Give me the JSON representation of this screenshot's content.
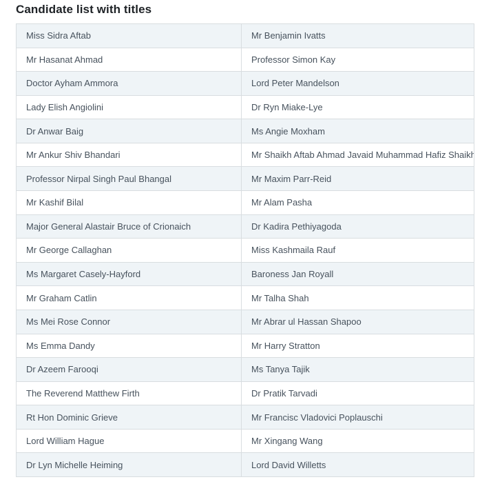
{
  "page": {
    "title": "Candidate list with titles"
  },
  "colors": {
    "heading_text": "#1e2226",
    "cell_text": "#47525d",
    "row_alt_bg": "#eff4f7",
    "border": "#d8dde0",
    "page_bg": "#ffffff"
  },
  "table": {
    "rows": [
      {
        "left": "Miss Sidra Aftab",
        "right": "Mr Benjamin Ivatts"
      },
      {
        "left": "Mr Hasanat Ahmad",
        "right": "Professor Simon Kay"
      },
      {
        "left": "Doctor Ayham Ammora",
        "right": "Lord Peter Mandelson"
      },
      {
        "left": "Lady Elish Angiolini",
        "right": "Dr Ryn Miake-Lye"
      },
      {
        "left": "Dr Anwar Baig",
        "right": "Ms Angie Moxham"
      },
      {
        "left": "Mr Ankur Shiv Bhandari",
        "right": "Mr Shaikh Aftab Ahmad Javaid Muhammad Hafiz Shaikh"
      },
      {
        "left": "Professor Nirpal Singh Paul Bhangal",
        "right": "Mr Maxim Parr-Reid"
      },
      {
        "left": "Mr Kashif Bilal",
        "right": "Mr Alam Pasha"
      },
      {
        "left": "Major General Alastair Bruce of Crionaich",
        "right": "Dr Kadira Pethiyagoda"
      },
      {
        "left": "Mr George Callaghan",
        "right": "Miss Kashmaila Rauf"
      },
      {
        "left": "Ms Margaret Casely-Hayford",
        "right": "Baroness Jan Royall"
      },
      {
        "left": "Mr Graham Catlin",
        "right": "Mr Talha Shah"
      },
      {
        "left": "Ms Mei Rose Connor",
        "right": "Mr Abrar ul Hassan Shapoo"
      },
      {
        "left": "Ms Emma Dandy",
        "right": "Mr Harry Stratton"
      },
      {
        "left": "Dr Azeem Farooqi",
        "right": "Ms Tanya Tajik"
      },
      {
        "left": "The Reverend Matthew Firth",
        "right": "Dr Pratik Tarvadi"
      },
      {
        "left": "Rt Hon Dominic Grieve",
        "right": "Mr Francisc Vladovici Poplauschi"
      },
      {
        "left": "Lord William Hague",
        "right": "Mr Xingang Wang"
      },
      {
        "left": "Dr Lyn Michelle Heiming",
        "right": "Lord David Willetts"
      }
    ]
  }
}
